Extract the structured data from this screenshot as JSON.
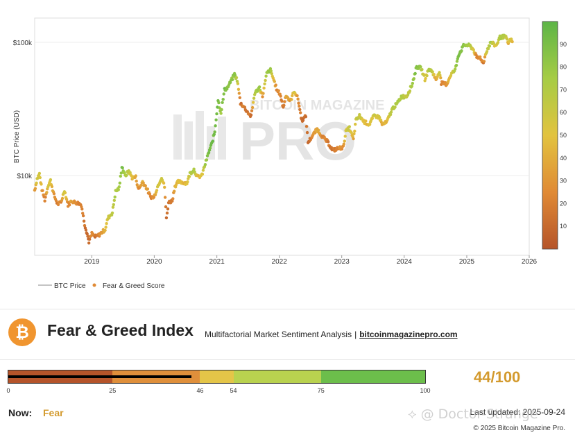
{
  "chart_data": {
    "type": "scatter",
    "title": "",
    "xlabel": "",
    "ylabel": "BTC Price (USD)",
    "y_scale": "log",
    "ylim": [
      2600,
      170000
    ],
    "xlim": [
      "2018-02-01",
      "2026-01-01"
    ],
    "x_tick_labels": [
      "2019",
      "2020",
      "2021",
      "2022",
      "2023",
      "2024",
      "2025",
      "2026"
    ],
    "y_tick_labels": [
      {
        "value": 10000,
        "label": "$10k"
      },
      {
        "value": 100000,
        "label": "$100k"
      }
    ],
    "grid": true,
    "legend_position": "bottom-left",
    "legend": [
      "BTC Price",
      "Fear & Greed Score"
    ],
    "colorbar": {
      "min": 0,
      "max": 100,
      "ticks": [
        10,
        20,
        30,
        40,
        50,
        60,
        70,
        80,
        90
      ],
      "colors": [
        "#b5542a",
        "#e08a35",
        "#e2c33f",
        "#a6cc45",
        "#5db547"
      ]
    },
    "series": [
      {
        "points": [
          [
            "2018-02-01",
            8200,
            30
          ],
          [
            "2018-02-15",
            10000,
            55
          ],
          [
            "2018-03-01",
            10900,
            60
          ],
          [
            "2018-03-15",
            8300,
            35
          ],
          [
            "2018-04-01",
            6900,
            18
          ],
          [
            "2018-04-20",
            8900,
            50
          ],
          [
            "2018-05-05",
            9700,
            55
          ],
          [
            "2018-05-25",
            7500,
            30
          ],
          [
            "2018-06-15",
            6400,
            20
          ],
          [
            "2018-07-05",
            6600,
            25
          ],
          [
            "2018-07-25",
            8200,
            60
          ],
          [
            "2018-08-15",
            6300,
            22
          ],
          [
            "2018-09-05",
            6800,
            35
          ],
          [
            "2018-09-25",
            6600,
            30
          ],
          [
            "2018-10-15",
            6500,
            25
          ],
          [
            "2018-11-01",
            6300,
            20
          ],
          [
            "2018-11-20",
            4500,
            15
          ],
          [
            "2018-12-05",
            3800,
            10
          ],
          [
            "2018-12-15",
            3300,
            8
          ],
          [
            "2019-01-01",
            3800,
            25
          ],
          [
            "2019-01-20",
            3600,
            15
          ],
          [
            "2019-02-10",
            3700,
            20
          ],
          [
            "2019-03-01",
            3900,
            35
          ],
          [
            "2019-03-20",
            4100,
            40
          ],
          [
            "2019-04-05",
            5000,
            60
          ],
          [
            "2019-05-01",
            5500,
            65
          ],
          [
            "2019-05-20",
            8000,
            75
          ],
          [
            "2019-06-10",
            8500,
            70
          ],
          [
            "2019-06-26",
            12500,
            90
          ],
          [
            "2019-07-15",
            10500,
            70
          ],
          [
            "2019-08-05",
            11500,
            65
          ],
          [
            "2019-08-25",
            10200,
            45
          ],
          [
            "2019-09-15",
            10300,
            40
          ],
          [
            "2019-10-01",
            8300,
            25
          ],
          [
            "2019-10-25",
            9500,
            40
          ],
          [
            "2019-11-15",
            8600,
            35
          ],
          [
            "2019-12-10",
            7300,
            20
          ],
          [
            "2019-12-30",
            7200,
            30
          ],
          [
            "2020-01-20",
            8700,
            55
          ],
          [
            "2020-02-13",
            10300,
            60
          ],
          [
            "2020-03-01",
            8700,
            40
          ],
          [
            "2020-03-12",
            5000,
            10
          ],
          [
            "2020-03-25",
            6600,
            15
          ],
          [
            "2020-04-15",
            6800,
            20
          ],
          [
            "2020-05-01",
            8800,
            40
          ],
          [
            "2020-05-20",
            9500,
            50
          ],
          [
            "2020-06-15",
            9400,
            45
          ],
          [
            "2020-07-10",
            9300,
            45
          ],
          [
            "2020-07-28",
            11000,
            70
          ],
          [
            "2020-08-20",
            11800,
            75
          ],
          [
            "2020-09-10",
            10300,
            45
          ],
          [
            "2020-10-05",
            10600,
            50
          ],
          [
            "2020-10-25",
            13000,
            75
          ],
          [
            "2020-11-15",
            16000,
            90
          ],
          [
            "2020-12-05",
            19000,
            92
          ],
          [
            "2020-12-20",
            23000,
            95
          ],
          [
            "2021-01-08",
            40000,
            95
          ],
          [
            "2021-01-25",
            32000,
            75
          ],
          [
            "2021-02-15",
            48000,
            95
          ],
          [
            "2021-03-05",
            50000,
            80
          ],
          [
            "2021-04-14",
            63000,
            85
          ],
          [
            "2021-04-30",
            57000,
            65
          ],
          [
            "2021-05-19",
            38000,
            15
          ],
          [
            "2021-06-05",
            36000,
            20
          ],
          [
            "2021-06-25",
            33000,
            18
          ],
          [
            "2021-07-20",
            30000,
            15
          ],
          [
            "2021-08-10",
            45000,
            70
          ],
          [
            "2021-09-07",
            50000,
            75
          ],
          [
            "2021-09-25",
            43000,
            30
          ],
          [
            "2021-10-20",
            64000,
            80
          ],
          [
            "2021-11-10",
            68000,
            80
          ],
          [
            "2021-11-30",
            57000,
            40
          ],
          [
            "2021-12-20",
            47000,
            25
          ],
          [
            "2022-01-05",
            45000,
            25
          ],
          [
            "2022-01-24",
            35000,
            15
          ],
          [
            "2022-02-10",
            44000,
            40
          ],
          [
            "2022-03-05",
            39000,
            30
          ],
          [
            "2022-03-30",
            47000,
            55
          ],
          [
            "2022-04-20",
            41000,
            30
          ],
          [
            "2022-05-12",
            28000,
            10
          ],
          [
            "2022-06-05",
            30000,
            15
          ],
          [
            "2022-06-18",
            19000,
            8
          ],
          [
            "2022-07-10",
            21000,
            20
          ],
          [
            "2022-08-10",
            24000,
            40
          ],
          [
            "2022-09-10",
            21000,
            25
          ],
          [
            "2022-10-10",
            19200,
            20
          ],
          [
            "2022-11-09",
            16500,
            12
          ],
          [
            "2022-12-10",
            17100,
            25
          ],
          [
            "2023-01-10",
            17400,
            30
          ],
          [
            "2023-01-25",
            23000,
            55
          ],
          [
            "2023-02-15",
            24500,
            60
          ],
          [
            "2023-03-10",
            20000,
            40
          ],
          [
            "2023-03-25",
            28000,
            60
          ],
          [
            "2023-04-15",
            30300,
            65
          ],
          [
            "2023-05-10",
            27500,
            50
          ],
          [
            "2023-06-10",
            26000,
            45
          ],
          [
            "2023-07-10",
            30500,
            60
          ],
          [
            "2023-08-10",
            29500,
            55
          ],
          [
            "2023-08-25",
            26000,
            40
          ],
          [
            "2023-09-20",
            27000,
            45
          ],
          [
            "2023-10-25",
            34500,
            70
          ],
          [
            "2023-11-20",
            37500,
            70
          ],
          [
            "2023-12-15",
            42500,
            72
          ],
          [
            "2024-01-15",
            42800,
            60
          ],
          [
            "2024-02-15",
            52000,
            75
          ],
          [
            "2024-03-14",
            72000,
            90
          ],
          [
            "2024-04-10",
            70000,
            75
          ],
          [
            "2024-05-01",
            58000,
            50
          ],
          [
            "2024-05-25",
            69000,
            75
          ],
          [
            "2024-06-15",
            66000,
            65
          ],
          [
            "2024-07-05",
            57000,
            30
          ],
          [
            "2024-07-25",
            67000,
            65
          ],
          [
            "2024-08-05",
            54000,
            25
          ],
          [
            "2024-09-06",
            53000,
            30
          ],
          [
            "2024-09-30",
            63000,
            55
          ],
          [
            "2024-10-25",
            68000,
            70
          ],
          [
            "2024-11-12",
            88000,
            90
          ],
          [
            "2024-12-17",
            106000,
            85
          ],
          [
            "2025-01-20",
            104000,
            70
          ],
          [
            "2025-02-10",
            97000,
            55
          ],
          [
            "2025-02-28",
            84000,
            20
          ],
          [
            "2025-03-20",
            85000,
            30
          ],
          [
            "2025-04-08",
            77000,
            18
          ],
          [
            "2025-04-25",
            94000,
            55
          ],
          [
            "2025-05-22",
            111000,
            75
          ],
          [
            "2025-06-20",
            104000,
            50
          ],
          [
            "2025-07-14",
            121000,
            75
          ],
          [
            "2025-08-14",
            123000,
            70
          ],
          [
            "2025-09-01",
            109000,
            45
          ],
          [
            "2025-09-15",
            116000,
            55
          ],
          [
            "2025-09-24",
            112000,
            44
          ]
        ]
      }
    ]
  },
  "brand": {
    "watermark_text": "BITCOIN MAGAZINE",
    "watermark_big": "PRO",
    "logo_symbol": "₿",
    "logo_color": "#f0952f"
  },
  "index": {
    "title": "Fear & Greed Index",
    "subtitle": "Multifactorial Market Sentiment Analysis",
    "separator": "|",
    "site": "bitcoinmagazinepro.com"
  },
  "gauge": {
    "value": 44,
    "bands": [
      {
        "from": 0,
        "to": 25,
        "color": "#b5542a"
      },
      {
        "from": 25,
        "to": 46,
        "color": "#df8f3b"
      },
      {
        "from": 46,
        "to": 54,
        "color": "#e4c548"
      },
      {
        "from": 54,
        "to": 75,
        "color": "#b9d24f"
      },
      {
        "from": 75,
        "to": 100,
        "color": "#6cbe4b"
      }
    ],
    "tick_values": [
      "0",
      "25",
      "46",
      "54",
      "75",
      "100"
    ]
  },
  "summary": {
    "score": "44/100",
    "now_label": "Now:",
    "now_value": "Fear",
    "last_updated": "Last updated: 2025-09-24",
    "copyright": "© 2025 Bitcoin Magazine Pro.",
    "social_watermark": "⟡ @ Doctor-Strange"
  }
}
